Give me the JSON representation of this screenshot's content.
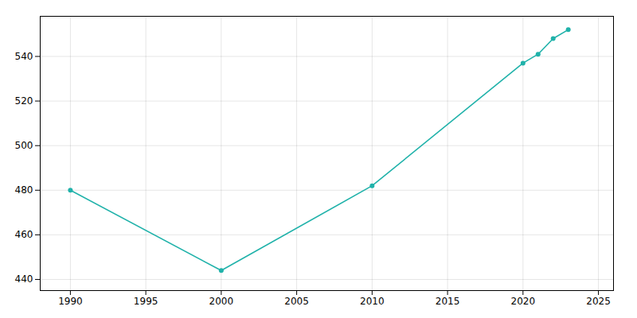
{
  "chart_data": {
    "type": "line",
    "x": [
      1990,
      2000,
      2010,
      2020,
      2021,
      2022,
      2023
    ],
    "values": [
      480,
      444,
      482,
      537,
      541,
      548,
      552
    ],
    "color": "#20b2aa",
    "marker": "circle",
    "xlim": [
      1988,
      2026
    ],
    "ylim": [
      435,
      558
    ],
    "xticks": [
      1990,
      1995,
      2000,
      2005,
      2010,
      2015,
      2020,
      2025
    ],
    "yticks": [
      440,
      460,
      480,
      500,
      520,
      540
    ],
    "grid": true
  }
}
